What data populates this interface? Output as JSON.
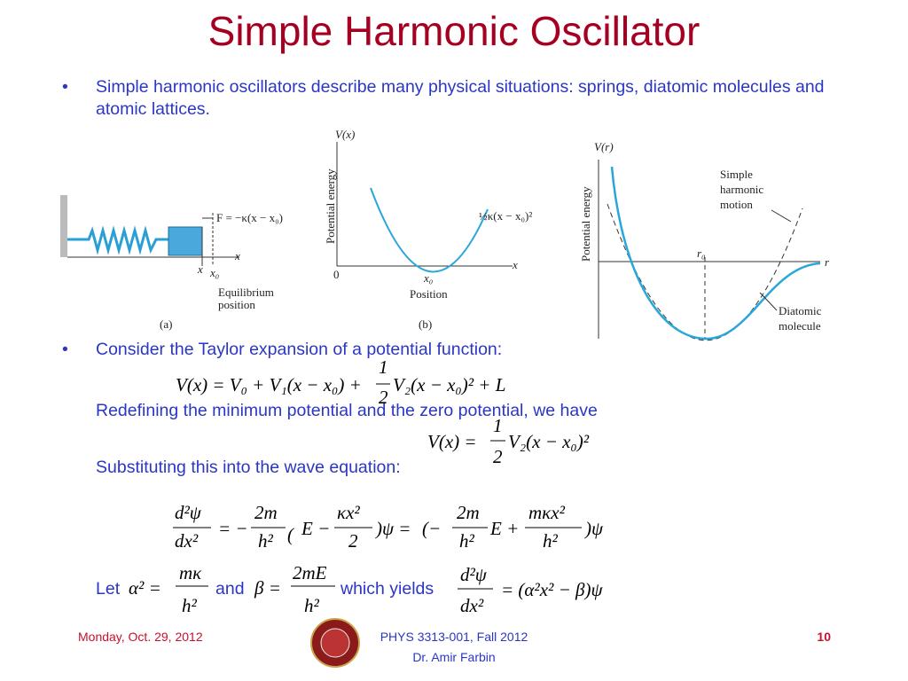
{
  "title": "Simple Harmonic Oscillator",
  "bullets": [
    "Simple harmonic oscillators describe many physical situations: springs, diatomic molecules and atomic lattices.",
    "Consider the Taylor expansion of a potential function:"
  ],
  "text_lines": [
    "Redefining the minimum potential and the zero potential, we have",
    "Substituting this into the wave equation:",
    "Let",
    "and",
    "which yields"
  ],
  "figure_a": {
    "force": "F = −κ(x − x₀)",
    "axis": "x",
    "x": "x",
    "x0": "x₀",
    "equilibrium": "Equilibrium",
    "position": "position",
    "caption": "(a)"
  },
  "figure_b": {
    "y_label": "V(x)",
    "y_axis": "Potential energy",
    "curve": "½κ(x − x₀)²",
    "x_axis": "x",
    "origin": "0",
    "x0": "x₀",
    "x_label": "Position",
    "caption": "(b)"
  },
  "figure_c": {
    "y_label": "V(r)",
    "y_axis": "Potential energy",
    "shm": [
      "Simple",
      "harmonic",
      "motion"
    ],
    "r0": "r₀",
    "r": "r",
    "diatomic": [
      "Diatomic",
      "molecule"
    ]
  },
  "equations": {
    "taylor": [
      "V(x) = V₀ + V₁(x − x₀) +",
      "1",
      "2",
      "V₂(x − x₀)²  + L"
    ],
    "redefined": [
      "V(x) =",
      "1",
      "2",
      "V₂(x − x₀)²"
    ],
    "wave": [
      "d²ψ",
      "dx²",
      "= −",
      "2m",
      "h²",
      "(",
      "E −",
      "κx²",
      "2",
      ")ψ =",
      "(−",
      "2m",
      "h²",
      "E +",
      "mκx²",
      "h²",
      ")ψ"
    ],
    "alpha": [
      "α² =",
      "mκ",
      "h²"
    ],
    "beta": [
      "β =",
      "2mE",
      "h²"
    ],
    "result": [
      "d²ψ",
      "dx²",
      "= (α²x² − β)ψ"
    ]
  },
  "footer": {
    "date": "Monday, Oct. 29, 2012",
    "course": "PHYS 3313-001, Fall 2012",
    "instructor": "Dr. Amir Farbin",
    "page": "10"
  }
}
